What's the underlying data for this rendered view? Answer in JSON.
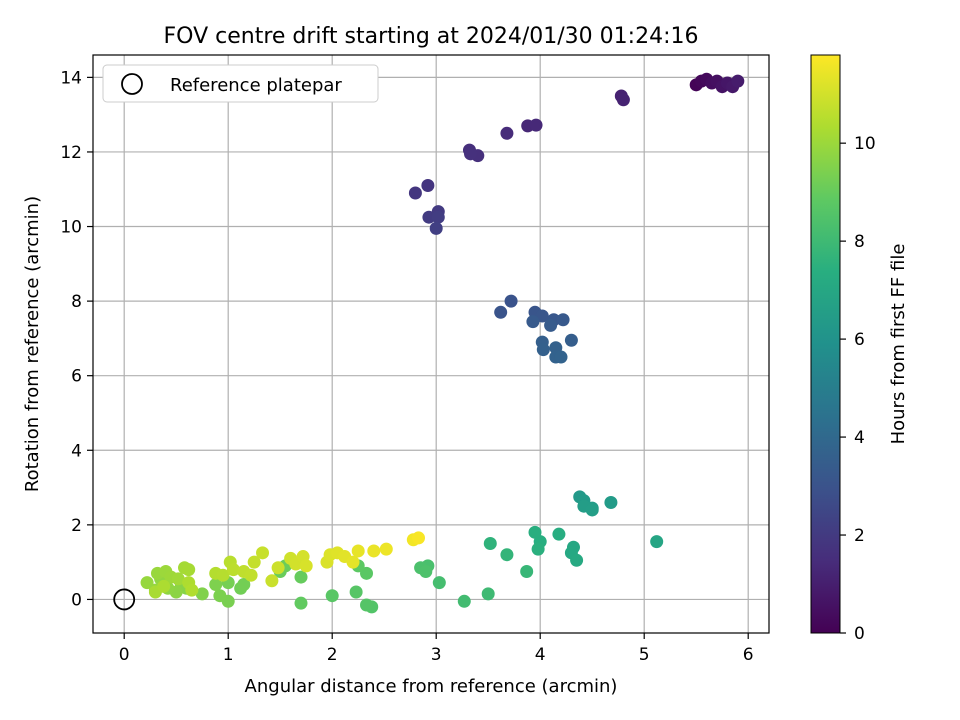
{
  "chart_data": {
    "type": "scatter",
    "title": "FOV centre drift starting at 2024/01/30 01:24:16",
    "xlabel": "Angular distance from reference (arcmin)",
    "ylabel": "Rotation from reference (arcmin)",
    "xlim": [
      -0.3,
      6.2
    ],
    "ylim": [
      -0.9,
      14.6
    ],
    "xticks": [
      0,
      1,
      2,
      3,
      4,
      5,
      6
    ],
    "yticks": [
      0,
      2,
      4,
      6,
      8,
      10,
      12,
      14
    ],
    "grid": true,
    "legend": {
      "position": "top-left",
      "label": "Reference platepar"
    },
    "reference_point": {
      "x": 0,
      "y": 0
    },
    "colorbar": {
      "label": "Hours from first FF file",
      "colormap": "viridis",
      "range": [
        0,
        11.8
      ],
      "ticks": [
        0,
        2,
        4,
        6,
        8,
        10
      ]
    },
    "points": [
      {
        "x": 5.5,
        "y": 13.8,
        "h": 0.1
      },
      {
        "x": 5.55,
        "y": 13.9,
        "h": 0.2
      },
      {
        "x": 5.6,
        "y": 13.95,
        "h": 0.3
      },
      {
        "x": 5.65,
        "y": 13.85,
        "h": 0.4
      },
      {
        "x": 5.7,
        "y": 13.9,
        "h": 0.5
      },
      {
        "x": 5.75,
        "y": 13.75,
        "h": 0.6
      },
      {
        "x": 5.8,
        "y": 13.85,
        "h": 0.7
      },
      {
        "x": 5.85,
        "y": 13.75,
        "h": 0.8
      },
      {
        "x": 5.9,
        "y": 13.9,
        "h": 0.9
      },
      {
        "x": 4.78,
        "y": 13.5,
        "h": 1.1
      },
      {
        "x": 4.8,
        "y": 13.4,
        "h": 1.15
      },
      {
        "x": 3.88,
        "y": 12.7,
        "h": 1.3
      },
      {
        "x": 3.96,
        "y": 12.72,
        "h": 1.35
      },
      {
        "x": 3.68,
        "y": 12.5,
        "h": 1.45
      },
      {
        "x": 3.32,
        "y": 12.05,
        "h": 1.55
      },
      {
        "x": 3.4,
        "y": 11.9,
        "h": 1.6
      },
      {
        "x": 3.33,
        "y": 11.95,
        "h": 1.65
      },
      {
        "x": 2.92,
        "y": 11.1,
        "h": 1.8
      },
      {
        "x": 2.8,
        "y": 10.9,
        "h": 1.85
      },
      {
        "x": 3.02,
        "y": 10.4,
        "h": 2.0
      },
      {
        "x": 2.93,
        "y": 10.25,
        "h": 2.05
      },
      {
        "x": 3.02,
        "y": 10.25,
        "h": 2.1
      },
      {
        "x": 3.0,
        "y": 9.95,
        "h": 2.2
      },
      {
        "x": 3.72,
        "y": 8.0,
        "h": 3.0
      },
      {
        "x": 3.62,
        "y": 7.7,
        "h": 3.05
      },
      {
        "x": 3.95,
        "y": 7.7,
        "h": 3.1
      },
      {
        "x": 4.02,
        "y": 7.6,
        "h": 3.15
      },
      {
        "x": 4.13,
        "y": 7.5,
        "h": 3.2
      },
      {
        "x": 4.22,
        "y": 7.5,
        "h": 3.25
      },
      {
        "x": 3.93,
        "y": 7.45,
        "h": 3.3
      },
      {
        "x": 4.1,
        "y": 7.35,
        "h": 3.35
      },
      {
        "x": 4.3,
        "y": 6.95,
        "h": 3.5
      },
      {
        "x": 4.02,
        "y": 6.9,
        "h": 3.55
      },
      {
        "x": 4.03,
        "y": 6.7,
        "h": 3.6
      },
      {
        "x": 4.15,
        "y": 6.75,
        "h": 3.65
      },
      {
        "x": 4.15,
        "y": 6.5,
        "h": 3.7
      },
      {
        "x": 4.2,
        "y": 6.5,
        "h": 3.75
      },
      {
        "x": 4.38,
        "y": 2.75,
        "h": 6.3
      },
      {
        "x": 4.42,
        "y": 2.65,
        "h": 6.35
      },
      {
        "x": 4.68,
        "y": 2.6,
        "h": 6.4
      },
      {
        "x": 4.5,
        "y": 2.45,
        "h": 6.45
      },
      {
        "x": 4.42,
        "y": 2.5,
        "h": 6.5
      },
      {
        "x": 4.5,
        "y": 2.4,
        "h": 6.55
      },
      {
        "x": 5.12,
        "y": 1.55,
        "h": 6.9
      },
      {
        "x": 4.32,
        "y": 1.4,
        "h": 7.0
      },
      {
        "x": 4.3,
        "y": 1.25,
        "h": 7.05
      },
      {
        "x": 4.35,
        "y": 1.05,
        "h": 7.1
      },
      {
        "x": 4.18,
        "y": 1.75,
        "h": 7.3
      },
      {
        "x": 4.0,
        "y": 1.55,
        "h": 7.35
      },
      {
        "x": 3.95,
        "y": 1.8,
        "h": 7.4
      },
      {
        "x": 3.98,
        "y": 1.35,
        "h": 7.45
      },
      {
        "x": 3.52,
        "y": 1.5,
        "h": 7.6
      },
      {
        "x": 3.68,
        "y": 1.2,
        "h": 7.7
      },
      {
        "x": 3.87,
        "y": 0.75,
        "h": 7.8
      },
      {
        "x": 3.5,
        "y": 0.15,
        "h": 8.0
      },
      {
        "x": 3.27,
        "y": -0.05,
        "h": 8.1
      },
      {
        "x": 3.03,
        "y": 0.45,
        "h": 8.2
      },
      {
        "x": 2.92,
        "y": 0.9,
        "h": 8.3
      },
      {
        "x": 2.85,
        "y": 0.85,
        "h": 8.35
      },
      {
        "x": 2.9,
        "y": 0.75,
        "h": 8.4
      },
      {
        "x": 2.38,
        "y": -0.2,
        "h": 8.55
      },
      {
        "x": 2.33,
        "y": -0.15,
        "h": 8.6
      },
      {
        "x": 2.23,
        "y": 0.2,
        "h": 8.65
      },
      {
        "x": 2.0,
        "y": 0.1,
        "h": 8.7
      },
      {
        "x": 2.33,
        "y": 0.7,
        "h": 8.75
      },
      {
        "x": 2.25,
        "y": 0.9,
        "h": 8.8
      },
      {
        "x": 1.7,
        "y": -0.1,
        "h": 8.9
      },
      {
        "x": 1.7,
        "y": 0.6,
        "h": 9.0
      },
      {
        "x": 1.5,
        "y": 0.75,
        "h": 9.05
      },
      {
        "x": 1.55,
        "y": 0.9,
        "h": 9.1
      },
      {
        "x": 1.12,
        "y": 0.3,
        "h": 9.2
      },
      {
        "x": 1.15,
        "y": 0.4,
        "h": 9.25
      },
      {
        "x": 1.0,
        "y": 0.45,
        "h": 9.3
      },
      {
        "x": 1.0,
        "y": -0.05,
        "h": 9.35
      },
      {
        "x": 0.92,
        "y": 0.1,
        "h": 9.4
      },
      {
        "x": 0.88,
        "y": 0.4,
        "h": 9.45
      },
      {
        "x": 0.75,
        "y": 0.15,
        "h": 9.5
      },
      {
        "x": 0.6,
        "y": 0.3,
        "h": 9.6
      },
      {
        "x": 0.55,
        "y": 0.4,
        "h": 9.65
      },
      {
        "x": 0.5,
        "y": 0.2,
        "h": 9.7
      },
      {
        "x": 0.42,
        "y": 0.3,
        "h": 9.75
      },
      {
        "x": 0.35,
        "y": 0.55,
        "h": 9.8
      },
      {
        "x": 0.3,
        "y": 0.25,
        "h": 9.85
      },
      {
        "x": 0.22,
        "y": 0.45,
        "h": 9.9
      },
      {
        "x": 0.32,
        "y": 0.7,
        "h": 9.95
      },
      {
        "x": 0.4,
        "y": 0.75,
        "h": 10.0
      },
      {
        "x": 0.45,
        "y": 0.6,
        "h": 10.05
      },
      {
        "x": 0.52,
        "y": 0.55,
        "h": 10.1
      },
      {
        "x": 0.58,
        "y": 0.85,
        "h": 10.15
      },
      {
        "x": 0.62,
        "y": 0.8,
        "h": 10.2
      },
      {
        "x": 0.3,
        "y": 0.2,
        "h": 10.25
      },
      {
        "x": 0.38,
        "y": 0.35,
        "h": 10.3
      },
      {
        "x": 0.62,
        "y": 0.45,
        "h": 10.35
      },
      {
        "x": 0.65,
        "y": 0.25,
        "h": 10.4
      },
      {
        "x": 0.88,
        "y": 0.7,
        "h": 10.45
      },
      {
        "x": 0.95,
        "y": 0.65,
        "h": 10.5
      },
      {
        "x": 1.02,
        "y": 1.0,
        "h": 10.55
      },
      {
        "x": 1.05,
        "y": 0.8,
        "h": 10.6
      },
      {
        "x": 1.15,
        "y": 0.75,
        "h": 10.65
      },
      {
        "x": 1.22,
        "y": 0.65,
        "h": 10.7
      },
      {
        "x": 1.25,
        "y": 1.0,
        "h": 10.75
      },
      {
        "x": 1.33,
        "y": 1.25,
        "h": 10.8
      },
      {
        "x": 1.42,
        "y": 0.5,
        "h": 10.85
      },
      {
        "x": 1.48,
        "y": 0.85,
        "h": 10.9
      },
      {
        "x": 1.6,
        "y": 1.1,
        "h": 10.95
      },
      {
        "x": 1.65,
        "y": 0.95,
        "h": 11.0
      },
      {
        "x": 1.72,
        "y": 1.15,
        "h": 11.05
      },
      {
        "x": 1.75,
        "y": 0.9,
        "h": 11.1
      },
      {
        "x": 1.95,
        "y": 1.0,
        "h": 11.15
      },
      {
        "x": 1.98,
        "y": 1.2,
        "h": 11.2
      },
      {
        "x": 2.05,
        "y": 1.25,
        "h": 11.25
      },
      {
        "x": 2.12,
        "y": 1.15,
        "h": 11.3
      },
      {
        "x": 2.2,
        "y": 1.0,
        "h": 11.35
      },
      {
        "x": 2.25,
        "y": 1.3,
        "h": 11.4
      },
      {
        "x": 2.4,
        "y": 1.3,
        "h": 11.45
      },
      {
        "x": 2.52,
        "y": 1.35,
        "h": 11.5
      },
      {
        "x": 2.78,
        "y": 1.6,
        "h": 11.6
      },
      {
        "x": 2.83,
        "y": 1.65,
        "h": 11.7
      }
    ]
  }
}
